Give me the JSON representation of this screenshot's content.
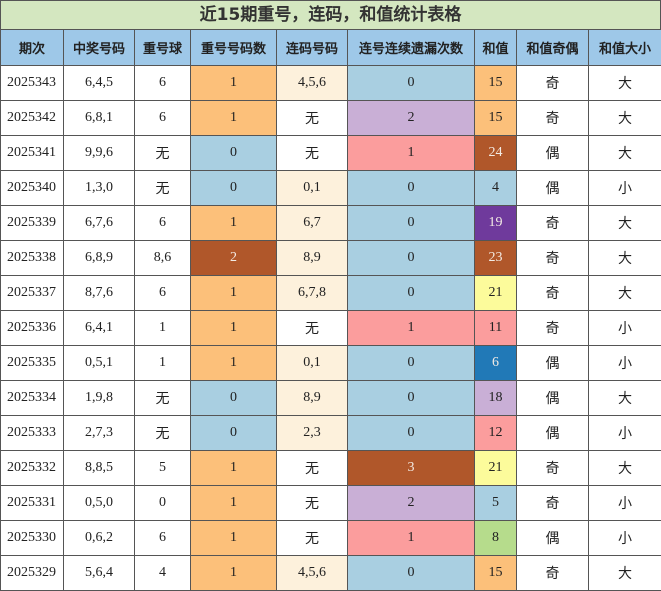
{
  "title": "近15期重号，连码，和值统计表格",
  "headers": [
    "期次",
    "中奖号码",
    "重号球",
    "重号号码数",
    "连码号码",
    "连号连续遗漏次数",
    "和值",
    "和值奇偶",
    "和值大小"
  ],
  "rows": [
    {
      "issue": "2025343",
      "numbers": "6,4,5",
      "repeat": "6",
      "repeat_count": "1",
      "consecutive": "4,5,6",
      "consec_miss": "0",
      "sum": "15",
      "parity": "奇",
      "size": "大"
    },
    {
      "issue": "2025342",
      "numbers": "6,8,1",
      "repeat": "6",
      "repeat_count": "1",
      "consecutive": "无",
      "consec_miss": "2",
      "sum": "15",
      "parity": "奇",
      "size": "大"
    },
    {
      "issue": "2025341",
      "numbers": "9,9,6",
      "repeat": "无",
      "repeat_count": "0",
      "consecutive": "无",
      "consec_miss": "1",
      "sum": "24",
      "parity": "偶",
      "size": "大"
    },
    {
      "issue": "2025340",
      "numbers": "1,3,0",
      "repeat": "无",
      "repeat_count": "0",
      "consecutive": "0,1",
      "consec_miss": "0",
      "sum": "4",
      "parity": "偶",
      "size": "小"
    },
    {
      "issue": "2025339",
      "numbers": "6,7,6",
      "repeat": "6",
      "repeat_count": "1",
      "consecutive": "6,7",
      "consec_miss": "0",
      "sum": "19",
      "parity": "奇",
      "size": "大"
    },
    {
      "issue": "2025338",
      "numbers": "6,8,9",
      "repeat": "8,6",
      "repeat_count": "2",
      "consecutive": "8,9",
      "consec_miss": "0",
      "sum": "23",
      "parity": "奇",
      "size": "大"
    },
    {
      "issue": "2025337",
      "numbers": "8,7,6",
      "repeat": "6",
      "repeat_count": "1",
      "consecutive": "6,7,8",
      "consec_miss": "0",
      "sum": "21",
      "parity": "奇",
      "size": "大"
    },
    {
      "issue": "2025336",
      "numbers": "6,4,1",
      "repeat": "1",
      "repeat_count": "1",
      "consecutive": "无",
      "consec_miss": "1",
      "sum": "11",
      "parity": "奇",
      "size": "小"
    },
    {
      "issue": "2025335",
      "numbers": "0,5,1",
      "repeat": "1",
      "repeat_count": "1",
      "consecutive": "0,1",
      "consec_miss": "0",
      "sum": "6",
      "parity": "偶",
      "size": "小"
    },
    {
      "issue": "2025334",
      "numbers": "1,9,8",
      "repeat": "无",
      "repeat_count": "0",
      "consecutive": "8,9",
      "consec_miss": "0",
      "sum": "18",
      "parity": "偶",
      "size": "大"
    },
    {
      "issue": "2025333",
      "numbers": "2,7,3",
      "repeat": "无",
      "repeat_count": "0",
      "consecutive": "2,3",
      "consec_miss": "0",
      "sum": "12",
      "parity": "偶",
      "size": "小"
    },
    {
      "issue": "2025332",
      "numbers": "8,8,5",
      "repeat": "5",
      "repeat_count": "1",
      "consecutive": "无",
      "consec_miss": "3",
      "sum": "21",
      "parity": "奇",
      "size": "大"
    },
    {
      "issue": "2025331",
      "numbers": "0,5,0",
      "repeat": "0",
      "repeat_count": "1",
      "consecutive": "无",
      "consec_miss": "2",
      "sum": "5",
      "parity": "奇",
      "size": "小"
    },
    {
      "issue": "2025330",
      "numbers": "0,6,2",
      "repeat": "6",
      "repeat_count": "1",
      "consecutive": "无",
      "consec_miss": "1",
      "sum": "8",
      "parity": "偶",
      "size": "小"
    },
    {
      "issue": "2025329",
      "numbers": "5,6,4",
      "repeat": "4",
      "repeat_count": "1",
      "consecutive": "4,5,6",
      "consec_miss": "0",
      "sum": "15",
      "parity": "奇",
      "size": "大"
    }
  ],
  "colors": {
    "title_bg": "#d4e7c0",
    "header_bg": "#9ec8e8",
    "repeat_count": {
      "0": "#a9cfe1",
      "1": "#fcc07a",
      "2": "#b0572a"
    },
    "consec_miss": {
      "0": "#a9cfe1",
      "1": "#fb9d9d",
      "2": "#c9afd6",
      "3": "#b0572a"
    },
    "sum": {
      "15": "#fcc07a",
      "24": "#b0572a",
      "4": "#a9cfe1",
      "19": "#6f3a9c",
      "23": "#b0572a",
      "21": "#fcfb9b",
      "11": "#fb9d9d",
      "6": "#2179b7",
      "18": "#c9afd6",
      "12": "#fb9d9d",
      "5": "#a9cfe1",
      "8": "#b6dc8c"
    },
    "consecutive_none": "#ffffff",
    "consecutive_set": "#fdf1dc"
  }
}
